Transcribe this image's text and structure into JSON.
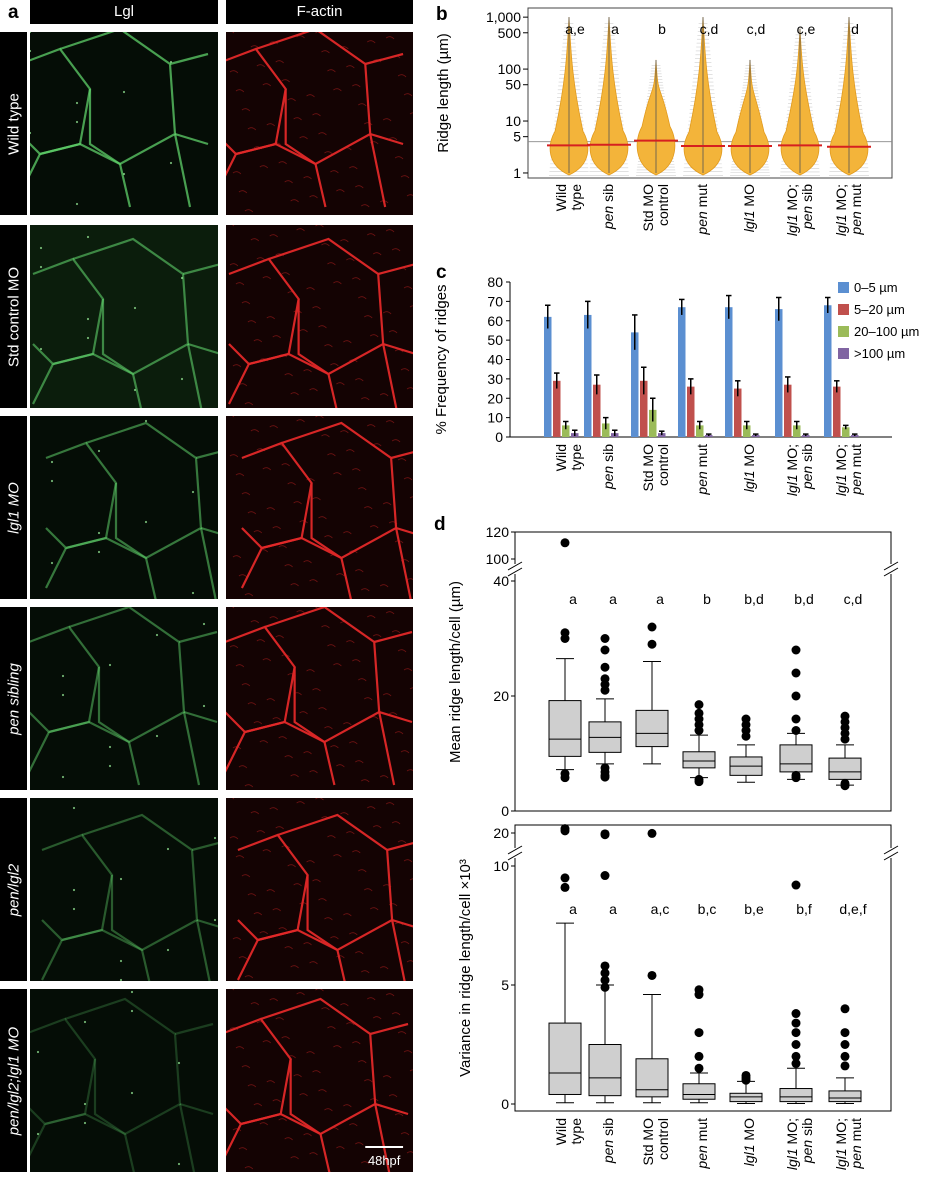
{
  "panel_a": {
    "label": "a",
    "col_headers": [
      "Lgl",
      "F-actin"
    ],
    "rows": [
      "Wild type",
      "Std control MO",
      "lgl1 MO",
      "pen sibling",
      "pen/lgl2",
      "pen/lgl2;lgl1 MO"
    ],
    "scalebar_label": "48hpf",
    "colors": {
      "lgl": "#5fd06a",
      "factin": "#e02828"
    }
  },
  "panel_b": {
    "label": "b",
    "ylabel": "Ridge length (µm)",
    "yticks": [
      "1,000",
      "500",
      "100",
      "50",
      "10",
      "5",
      "1"
    ],
    "groups": [
      "Wild type",
      "pen sib",
      "Std MO control",
      "pen mut",
      "lgl1 MO",
      "lgl1 MO; pen sib",
      "lgl1 MO; pen mut"
    ],
    "letters": [
      "a,e",
      "a",
      "b",
      "c,d",
      "c,d",
      "c,e",
      "d"
    ]
  },
  "panel_c": {
    "label": "c",
    "ylabel": "% Frequency of ridges",
    "legend": [
      "0–5 µm",
      "5–20 µm",
      "20–100 µm",
      ">100 µm"
    ]
  },
  "panel_d": {
    "label": "d",
    "ylabel_top": "Mean ridge length/cell (µm)",
    "ylabel_bottom": "Variance in ridge length/cell ×10³",
    "letters_top": [
      "a",
      "a",
      "a",
      "b",
      "b,d",
      "b,d",
      "c,d"
    ],
    "letters_bottom": [
      "a",
      "a",
      "a,c",
      "b,c",
      "b,e",
      "b,f",
      "d,e,f"
    ]
  },
  "chart_data": [
    {
      "type": "violin",
      "title": "",
      "ylabel": "Ridge length (µm)",
      "yscale": "log",
      "ylim": [
        0.8,
        1500
      ],
      "categories": [
        "Wild type",
        "pen sib",
        "Std MO control",
        "pen mut",
        "lgl1 MO",
        "lgl1 MO; pen sib",
        "lgl1 MO; pen mut"
      ],
      "medians": [
        3.4,
        3.5,
        4.2,
        3.3,
        3.3,
        3.4,
        3.2
      ],
      "max": [
        1000,
        1000,
        150,
        1000,
        150,
        600,
        1000
      ],
      "letters": [
        "a,e",
        "a",
        "b",
        "c,d",
        "c,d",
        "c,e",
        "d"
      ]
    },
    {
      "type": "bar",
      "ylabel": "% Frequency of ridges",
      "ylim": [
        0,
        80
      ],
      "categories": [
        "Wild type",
        "pen sib",
        "Std MO control",
        "pen mut",
        "lgl1 MO",
        "lgl1 MO; pen sib",
        "lgl1 MO; pen mut"
      ],
      "series": [
        {
          "name": "0–5 µm",
          "color": "#5b8fd1",
          "values": [
            62,
            63,
            54,
            67,
            67,
            66,
            68
          ],
          "errors": [
            6,
            7,
            9,
            4,
            6,
            6,
            4
          ]
        },
        {
          "name": "5–20 µm",
          "color": "#c0504d",
          "values": [
            29,
            27,
            29,
            26,
            25,
            27,
            26
          ],
          "errors": [
            4,
            5,
            7,
            4,
            4,
            4,
            3
          ]
        },
        {
          "name": "20–100 µm",
          "color": "#9bbb59",
          "values": [
            6,
            7,
            14,
            6,
            6,
            6,
            5
          ],
          "errors": [
            2,
            3,
            6,
            2,
            2,
            2,
            1
          ]
        },
        {
          "name": ">100 µm",
          "color": "#8064a2",
          "values": [
            2,
            2,
            2,
            1,
            1,
            1,
            1
          ],
          "errors": [
            1.5,
            1.5,
            1,
            0.5,
            0.5,
            0.5,
            0.5
          ]
        }
      ],
      "legend_position": "top-right"
    },
    {
      "type": "box",
      "ylabel": "Mean ridge length/cell (µm)",
      "axis_break": [
        40,
        100
      ],
      "yticks": [
        0,
        20,
        40,
        100,
        120
      ],
      "categories": [
        "Wild type",
        "pen sib",
        "Std MO control",
        "pen mut",
        "lgl1 MO",
        "lgl1 MO; pen sib",
        "lgl1 MO; pen mut"
      ],
      "boxes": [
        {
          "q1": 9.5,
          "median": 12.5,
          "q3": 19.2,
          "wlo": 7.2,
          "whi": 26.5,
          "outliers": [
            112,
            31,
            30,
            6.5,
            5.8
          ]
        },
        {
          "q1": 10.2,
          "median": 12.8,
          "q3": 15.5,
          "wlo": 8.2,
          "whi": 19.5,
          "outliers": [
            30,
            28,
            25,
            23,
            22,
            21,
            7.5,
            6.8,
            6.2,
            5.9
          ]
        },
        {
          "q1": 11.2,
          "median": 13.5,
          "q3": 17.5,
          "wlo": 8.2,
          "whi": 26.0,
          "outliers": [
            32,
            29
          ]
        },
        {
          "q1": 7.5,
          "median": 8.7,
          "q3": 10.3,
          "wlo": 5.8,
          "whi": 13.2,
          "outliers": [
            18.5,
            17,
            16,
            15,
            14,
            5.5,
            5.1
          ]
        },
        {
          "q1": 6.2,
          "median": 7.8,
          "q3": 9.4,
          "wlo": 5.0,
          "whi": 11.5,
          "outliers": [
            16,
            15,
            14,
            13
          ]
        },
        {
          "q1": 6.8,
          "median": 8.2,
          "q3": 11.5,
          "wlo": 5.5,
          "whi": 13.5,
          "outliers": [
            28,
            24,
            20,
            16,
            14,
            6.2,
            5.8
          ]
        },
        {
          "q1": 5.5,
          "median": 6.8,
          "q3": 9.2,
          "wlo": 4.5,
          "whi": 11.5,
          "outliers": [
            16.5,
            15.5,
            14.5,
            13.5,
            12.5,
            4.8,
            4.4
          ]
        }
      ],
      "letters": [
        "a",
        "a",
        "a",
        "b",
        "b,d",
        "b,d",
        "c,d"
      ]
    },
    {
      "type": "box",
      "ylabel": "Variance in ridge length/cell ×10³",
      "axis_break": [
        10,
        20
      ],
      "yticks": [
        0,
        5,
        10,
        20
      ],
      "categories": [
        "Wild type",
        "pen sib",
        "Std MO control",
        "pen mut",
        "lgl1 MO",
        "lgl1 MO; pen sib",
        "lgl1 MO; pen mut"
      ],
      "boxes": [
        {
          "q1": 0.4,
          "median": 1.3,
          "q3": 3.4,
          "wlo": 0.05,
          "whi": 7.6,
          "outliers": [
            22,
            21,
            9.5,
            9.1
          ]
        },
        {
          "q1": 0.35,
          "median": 1.1,
          "q3": 2.5,
          "wlo": 0.05,
          "whi": 5.0,
          "outliers": [
            19.6,
            19.2,
            9.6,
            5.8,
            5.5,
            5.2,
            4.9
          ]
        },
        {
          "q1": 0.3,
          "median": 0.6,
          "q3": 1.9,
          "wlo": 0.05,
          "whi": 4.6,
          "outliers": [
            19.8,
            5.4
          ]
        },
        {
          "q1": 0.2,
          "median": 0.4,
          "q3": 0.85,
          "wlo": 0.05,
          "whi": 1.3,
          "outliers": [
            4.8,
            4.6,
            3.0,
            2.0,
            1.5
          ]
        },
        {
          "q1": 0.1,
          "median": 0.3,
          "q3": 0.45,
          "wlo": 0.02,
          "whi": 0.95,
          "outliers": [
            1.2,
            1.1,
            1.0
          ]
        },
        {
          "q1": 0.1,
          "median": 0.3,
          "q3": 0.65,
          "wlo": 0.02,
          "whi": 1.5,
          "outliers": [
            9.2,
            3.8,
            3.4,
            3.0,
            2.5,
            2.0,
            1.7
          ]
        },
        {
          "q1": 0.1,
          "median": 0.25,
          "q3": 0.55,
          "wlo": 0.02,
          "whi": 1.1,
          "outliers": [
            4.0,
            3.0,
            2.5,
            2.0,
            1.6
          ]
        }
      ],
      "letters": [
        "a",
        "a",
        "a,c",
        "b,c",
        "b,e",
        "b,f",
        "d,e,f"
      ]
    }
  ]
}
